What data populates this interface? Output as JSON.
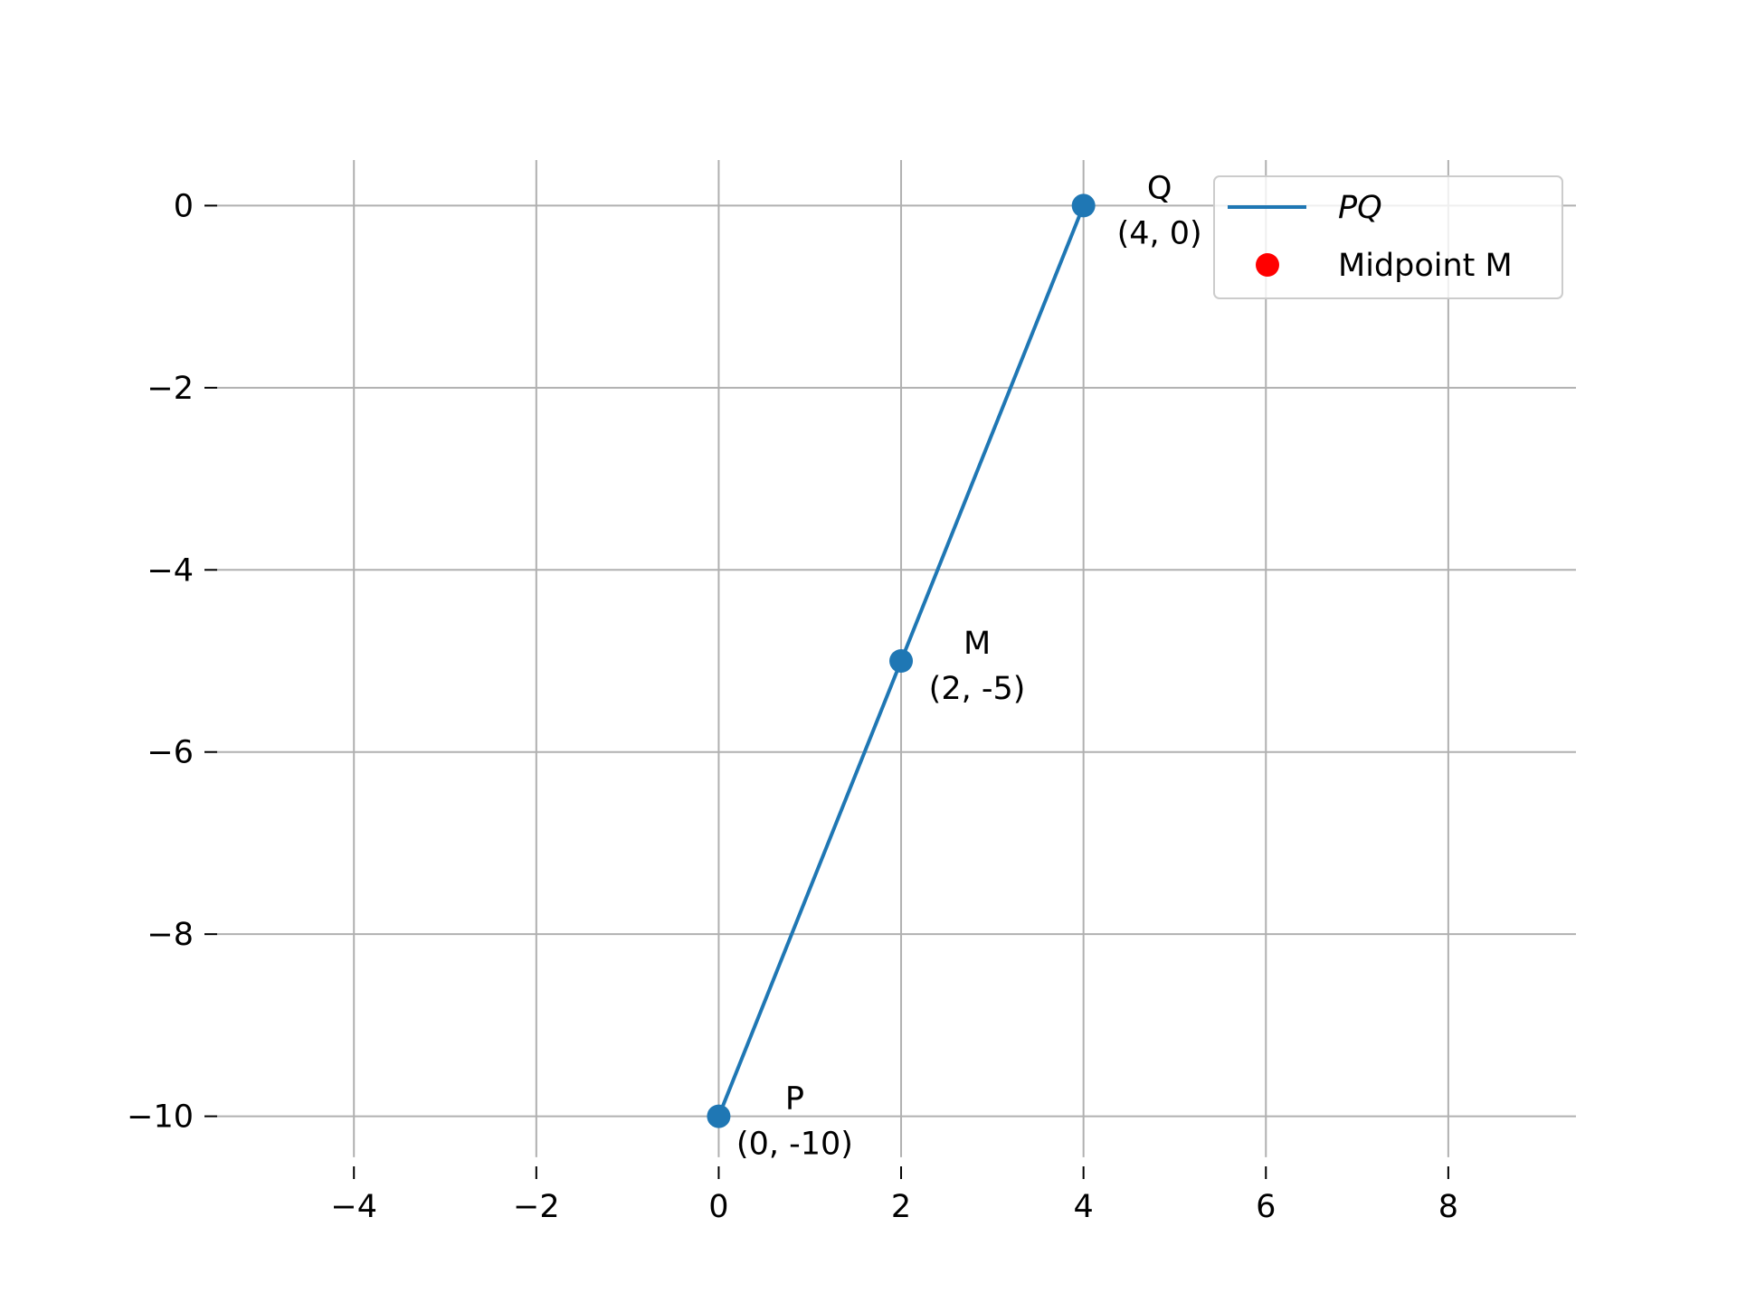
{
  "chart_data": {
    "type": "line",
    "title": "",
    "xlabel": "",
    "ylabel": "",
    "xlim": [
      -5.5,
      9.4
    ],
    "ylim": [
      -10.55,
      0.55
    ],
    "x_ticks": [
      -4,
      -2,
      0,
      2,
      4,
      6,
      8
    ],
    "x_tick_labels": [
      "−4",
      "−2",
      "0",
      "2",
      "4",
      "6",
      "8"
    ],
    "y_ticks": [
      0,
      -2,
      -4,
      -6,
      -8,
      -10
    ],
    "y_tick_labels": [
      "0",
      "−2",
      "−4",
      "−6",
      "−8",
      "−10"
    ],
    "grid": true,
    "series": [
      {
        "name": "PQ",
        "kind": "line",
        "color": "#1f77b4",
        "points": [
          {
            "x": 0,
            "y": -10
          },
          {
            "x": 4,
            "y": 0
          }
        ]
      },
      {
        "name": "Midpoint M",
        "kind": "scatter",
        "color": "#ff0000",
        "points": [
          {
            "x": 2,
            "y": -5
          }
        ]
      }
    ],
    "point_markers": {
      "color": "#1f77b4",
      "points": [
        {
          "x": 0,
          "y": -10
        },
        {
          "x": 2,
          "y": -5
        },
        {
          "x": 4,
          "y": 0
        }
      ]
    },
    "annotations": [
      {
        "x": 0,
        "y": -10,
        "name": "P",
        "coords": "(0, -10)"
      },
      {
        "x": 2,
        "y": -5,
        "name": "M",
        "coords": "(2, -5)"
      },
      {
        "x": 4,
        "y": 0,
        "name": "Q",
        "coords": "(4, 0)"
      }
    ],
    "legend": {
      "position": "top-right",
      "entries": [
        {
          "label": "PQ",
          "marker": "line",
          "color": "#1f77b4",
          "italic": true
        },
        {
          "label": "Midpoint M",
          "marker": "dot",
          "color": "#ff0000",
          "italic": false
        }
      ]
    },
    "colors": {
      "grid": "#b0b0b0",
      "axis": "#000000"
    }
  }
}
